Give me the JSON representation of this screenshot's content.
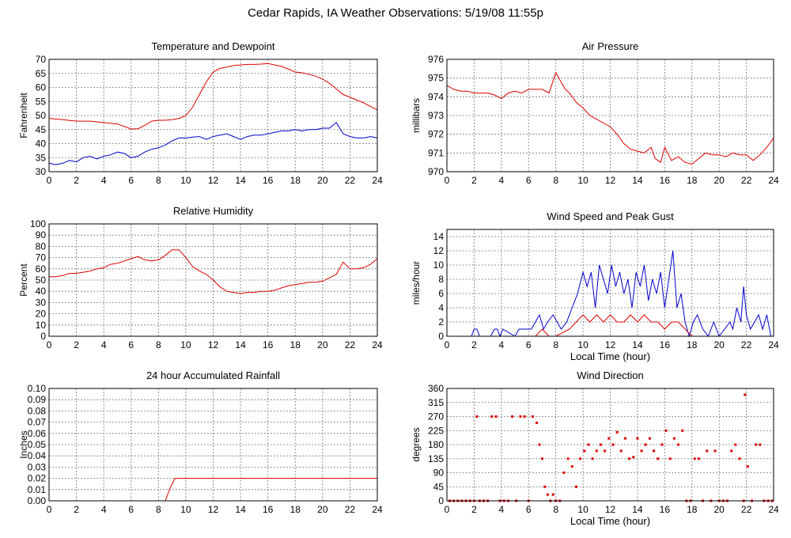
{
  "page": {
    "title": "Cedar Rapids, IA Weather Observations: 5/19/08 11:55p"
  },
  "colors": {
    "red": "#dd0000",
    "blue": "#0000cc",
    "grid": "#777777",
    "axis": "#000000"
  },
  "chart_data": [
    {
      "type": "line",
      "title": "Temperature and Dewpoint",
      "xlabel": "",
      "ylabel": "Fahrenheit",
      "xlim": [
        0,
        24
      ],
      "ylim": [
        30,
        70
      ],
      "xticks": [
        0,
        2,
        4,
        6,
        8,
        10,
        12,
        14,
        16,
        18,
        20,
        22,
        24
      ],
      "yticks": [
        30,
        35,
        40,
        45,
        50,
        55,
        60,
        65,
        70
      ],
      "grid": true,
      "series": [
        {
          "color": "red",
          "x": [
            0,
            1,
            2,
            3,
            4,
            5,
            6,
            6.5,
            7,
            7.5,
            8,
            8.5,
            9,
            9.5,
            10,
            10.5,
            11,
            11.5,
            12,
            12.5,
            13,
            13.5,
            14,
            14.5,
            15,
            15.5,
            16,
            16.5,
            17,
            17.5,
            18,
            18.5,
            19,
            19.5,
            20,
            20.5,
            21,
            21.5,
            22,
            22.5,
            23,
            23.5,
            24
          ],
          "y": [
            49,
            48.5,
            48,
            48,
            47.5,
            47,
            45.2,
            45.3,
            46.5,
            48,
            48.3,
            48.3,
            48.5,
            49,
            50,
            53,
            57.5,
            62,
            65.5,
            66.8,
            67.2,
            67.8,
            68,
            68.2,
            68.2,
            68.3,
            68.5,
            68,
            67.5,
            66.5,
            65.5,
            65.2,
            64.7,
            64,
            63,
            61.5,
            59.5,
            57.5,
            56.5,
            55.5,
            54.5,
            53.2,
            52
          ]
        },
        {
          "color": "blue",
          "x": [
            0,
            0.5,
            1,
            1.5,
            2,
            2.5,
            3,
            3.5,
            4,
            4.5,
            5,
            5.5,
            6,
            6.5,
            7,
            7.5,
            8,
            8.5,
            9,
            9.5,
            10,
            10.5,
            11,
            11.5,
            12,
            12.5,
            13,
            13.5,
            14,
            14.5,
            15,
            15.5,
            16,
            16.5,
            17,
            17.5,
            18,
            18.5,
            19,
            19.5,
            20,
            20.5,
            21,
            21.5,
            22,
            22.5,
            23,
            23.5,
            24
          ],
          "y": [
            33,
            32.5,
            33,
            34,
            33.5,
            35,
            35.5,
            34.5,
            35.5,
            36,
            37,
            36.5,
            35,
            35.5,
            37,
            38,
            38.5,
            39.5,
            41,
            42,
            42,
            42.3,
            42.5,
            41.5,
            42.5,
            43,
            43.5,
            42.5,
            41.5,
            42.5,
            43,
            43,
            43.5,
            44,
            44.5,
            44.5,
            45,
            44.5,
            45,
            45,
            45.5,
            45.5,
            47.5,
            43.5,
            42.5,
            42,
            42,
            42.5,
            42
          ]
        }
      ]
    },
    {
      "type": "line",
      "title": "Air Pressure",
      "xlabel": "",
      "ylabel": "millibars",
      "xlim": [
        0,
        24
      ],
      "ylim": [
        970,
        976
      ],
      "xticks": [
        0,
        2,
        4,
        6,
        8,
        10,
        12,
        14,
        16,
        18,
        20,
        22,
        24
      ],
      "yticks": [
        970,
        971,
        972,
        973,
        974,
        975,
        976
      ],
      "grid": true,
      "series": [
        {
          "color": "red",
          "x": [
            0,
            0.5,
            1,
            1.5,
            2,
            2.5,
            3,
            3.5,
            4,
            4.5,
            5,
            5.5,
            6,
            6.5,
            7,
            7.5,
            8,
            8.3,
            8.7,
            9,
            9.5,
            10,
            10.5,
            11,
            11.5,
            12,
            12.5,
            13,
            13.5,
            14,
            14.5,
            15,
            15.3,
            15.7,
            16,
            16.5,
            17,
            17.5,
            18,
            18.5,
            19,
            19.5,
            20,
            20.5,
            21,
            21.5,
            22,
            22.5,
            23,
            23.5,
            24
          ],
          "y": [
            974.6,
            974.4,
            974.3,
            974.3,
            974.2,
            974.2,
            974.2,
            974.1,
            973.9,
            974.2,
            974.3,
            974.2,
            974.4,
            974.4,
            974.4,
            974.2,
            975.3,
            974.9,
            974.4,
            974.2,
            973.7,
            973.4,
            973,
            972.8,
            972.6,
            972.4,
            972,
            971.5,
            971.2,
            971.1,
            971,
            971.3,
            970.7,
            970.5,
            971.3,
            970.6,
            970.8,
            970.5,
            970.4,
            970.7,
            971.0,
            970.9,
            970.9,
            970.8,
            971.0,
            970.9,
            970.9,
            970.6,
            970.9,
            971.3,
            971.8
          ]
        }
      ]
    },
    {
      "type": "line",
      "title": "Relative Humidity",
      "xlabel": "",
      "ylabel": "Percent",
      "xlim": [
        0,
        24
      ],
      "ylim": [
        0,
        100
      ],
      "xticks": [
        0,
        2,
        4,
        6,
        8,
        10,
        12,
        14,
        16,
        18,
        20,
        22,
        24
      ],
      "yticks": [
        0,
        10,
        20,
        30,
        40,
        50,
        60,
        70,
        80,
        90,
        100
      ],
      "grid": true,
      "series": [
        {
          "color": "red",
          "x": [
            0,
            0.5,
            1,
            1.5,
            2,
            2.5,
            3,
            3.5,
            4,
            4.5,
            5,
            5.5,
            6,
            6.5,
            7,
            7.5,
            8,
            8.5,
            9,
            9.5,
            10,
            10.5,
            11,
            11.5,
            12,
            12.5,
            13,
            13.5,
            14,
            14.5,
            15,
            15.5,
            16,
            16.5,
            17,
            17.5,
            18,
            18.5,
            19,
            19.5,
            20,
            20.5,
            21,
            21.5,
            22,
            22.5,
            23,
            23.5,
            24
          ],
          "y": [
            53,
            53,
            54,
            56,
            56,
            57,
            58,
            60,
            61,
            64,
            65,
            67,
            69,
            71,
            68,
            67,
            68,
            72,
            77,
            77,
            70,
            62,
            58,
            55,
            50,
            44,
            40,
            39,
            38,
            39,
            39,
            40,
            40,
            41,
            43,
            45,
            46,
            47,
            48,
            48,
            49,
            52,
            55,
            66,
            60,
            60,
            61,
            64,
            69
          ]
        }
      ]
    },
    {
      "type": "bar",
      "title": "Wind Speed and Peak Gust",
      "xlabel": "Local Time (hour)",
      "ylabel": "miles/hour",
      "xlim": [
        0,
        24
      ],
      "ylim": [
        0,
        15
      ],
      "xticks": [
        0,
        2,
        4,
        6,
        8,
        10,
        12,
        14,
        16,
        18,
        20,
        22,
        24
      ],
      "yticks": [
        0,
        2,
        4,
        6,
        8,
        10,
        12,
        14
      ],
      "grid": true,
      "series": [
        {
          "color": "blue",
          "x": [
            0,
            1.8,
            2,
            2.2,
            2.4,
            3.2,
            3.5,
            3.7,
            3.9,
            4.1,
            5,
            5.3,
            5.6,
            6.2,
            6.5,
            6.8,
            7.1,
            7.4,
            7.8,
            8.1,
            8.4,
            8.8,
            9.2,
            9.6,
            10,
            10.3,
            10.6,
            10.9,
            11.2,
            11.5,
            11.8,
            12.1,
            12.4,
            12.7,
            13,
            13.3,
            13.6,
            13.9,
            14.2,
            14.5,
            14.8,
            15.1,
            15.4,
            15.7,
            16,
            16.3,
            16.6,
            16.9,
            17.2,
            17.5,
            17.8,
            18.1,
            18.4,
            18.8,
            19.2,
            19.6,
            20,
            20.4,
            20.8,
            21,
            21.3,
            21.6,
            21.8,
            22,
            22.3,
            22.6,
            22.9,
            23.2,
            23.5,
            23.8,
            24
          ],
          "y": [
            0,
            0,
            1,
            1,
            0,
            0,
            1,
            1,
            0,
            1,
            0,
            1,
            1,
            1,
            2,
            3,
            1,
            2,
            3,
            2,
            1,
            2,
            4,
            6,
            9,
            7,
            9,
            4,
            10,
            8,
            6,
            10,
            7,
            9,
            6,
            8,
            4,
            9,
            7,
            10,
            5,
            8,
            6,
            9,
            4,
            8,
            12,
            4,
            6,
            2,
            0,
            2,
            3,
            1,
            0,
            2,
            0,
            1,
            2,
            1,
            4,
            2,
            7,
            3,
            1,
            2,
            3,
            1,
            3,
            0,
            0
          ]
        },
        {
          "color": "red",
          "x": [
            0,
            6.5,
            7,
            7.5,
            8,
            9,
            9.5,
            10,
            10.5,
            11,
            11.5,
            12,
            12.5,
            13,
            13.5,
            14,
            14.5,
            15,
            15.5,
            16,
            16.5,
            17,
            17.5,
            18,
            24
          ],
          "y": [
            0,
            0,
            1,
            0,
            0,
            1,
            2,
            3,
            2,
            3,
            2,
            3,
            2,
            2,
            3,
            2,
            3,
            2,
            2,
            1,
            2,
            2,
            1,
            0,
            0
          ]
        }
      ]
    },
    {
      "type": "line",
      "title": "24 hour Accumulated Rainfall",
      "xlabel": "",
      "ylabel": "Inches",
      "xlim": [
        0,
        24
      ],
      "ylim": [
        0,
        0.1
      ],
      "xticks": [
        0,
        2,
        4,
        6,
        8,
        10,
        12,
        14,
        16,
        18,
        20,
        22,
        24
      ],
      "yticks": [
        "0.00",
        "0.01",
        "0.02",
        "0.03",
        "0.04",
        "0.05",
        "0.06",
        "0.07",
        "0.08",
        "0.09",
        "0.10"
      ],
      "grid": true,
      "series": [
        {
          "color": "red",
          "x": [
            0,
            8.5,
            8.8,
            9.2,
            24
          ],
          "y": [
            0,
            0,
            0.01,
            0.02,
            0.02
          ]
        }
      ]
    },
    {
      "type": "scatter",
      "title": "Wind Direction",
      "xlabel": "Local Time (hour)",
      "ylabel": "degrees",
      "xlim": [
        0,
        24
      ],
      "ylim": [
        0,
        360
      ],
      "xticks": [
        0,
        2,
        4,
        6,
        8,
        10,
        12,
        14,
        16,
        18,
        20,
        22,
        24
      ],
      "yticks": [
        0,
        45,
        90,
        135,
        180,
        225,
        270,
        315,
        360
      ],
      "grid": true,
      "series": [
        {
          "color": "red",
          "x": [
            0.2,
            0.5,
            0.8,
            1.1,
            1.4,
            1.7,
            2.0,
            2.2,
            2.4,
            2.7,
            3.0,
            3.3,
            3.6,
            3.9,
            4.2,
            4.5,
            4.8,
            5.1,
            5.4,
            5.7,
            6.0,
            6.3,
            6.6,
            6.8,
            7.0,
            7.2,
            7.4,
            7.6,
            7.8,
            8.0,
            8.3,
            8.6,
            8.9,
            9.2,
            9.5,
            9.8,
            10.1,
            10.4,
            10.7,
            11.0,
            11.3,
            11.6,
            11.9,
            12.2,
            12.5,
            12.8,
            13.1,
            13.4,
            13.7,
            14.0,
            14.3,
            14.6,
            14.9,
            15.2,
            15.5,
            15.8,
            16.1,
            16.4,
            16.7,
            17.0,
            17.3,
            17.6,
            17.9,
            18.2,
            18.5,
            18.8,
            19.1,
            19.4,
            19.7,
            20.0,
            20.3,
            20.6,
            20.9,
            21.2,
            21.5,
            21.8,
            21.9,
            22.1,
            22.4,
            22.7,
            23.0,
            23.3,
            23.6,
            23.9
          ],
          "y": [
            0,
            0,
            0,
            0,
            0,
            0,
            0,
            270,
            0,
            0,
            0,
            270,
            270,
            0,
            0,
            0,
            270,
            0,
            270,
            270,
            0,
            270,
            250,
            180,
            135,
            45,
            20,
            0,
            20,
            0,
            0,
            90,
            135,
            110,
            45,
            135,
            160,
            180,
            135,
            160,
            180,
            160,
            200,
            180,
            220,
            160,
            200,
            135,
            140,
            200,
            160,
            180,
            200,
            160,
            135,
            180,
            225,
            135,
            200,
            180,
            225,
            0,
            0,
            135,
            135,
            0,
            160,
            0,
            160,
            0,
            0,
            0,
            160,
            180,
            135,
            0,
            340,
            110,
            0,
            180,
            180,
            0,
            0,
            0
          ]
        }
      ]
    }
  ]
}
